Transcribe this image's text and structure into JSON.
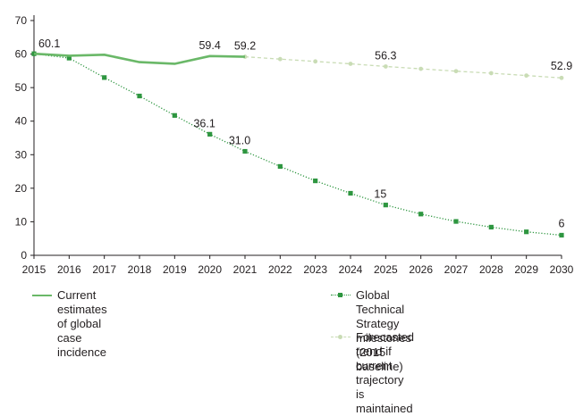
{
  "chart_data": {
    "type": "line",
    "x": [
      2015,
      2016,
      2017,
      2018,
      2019,
      2020,
      2021,
      2022,
      2023,
      2024,
      2025,
      2026,
      2027,
      2028,
      2029,
      2030
    ],
    "ylim": [
      0,
      70
    ],
    "yticks": [
      0,
      10,
      20,
      30,
      40,
      50,
      60,
      70
    ],
    "xlabel": "",
    "ylabel": "",
    "grid": false,
    "legend_position": "bottom",
    "series": [
      {
        "key": "current",
        "name": "Current estimates of global case incidence",
        "style": "solid",
        "color": "#6ab868",
        "x": [
          2015,
          2016,
          2017,
          2018,
          2019,
          2020,
          2021
        ],
        "values": [
          60.1,
          59.5,
          59.8,
          57.6,
          57.1,
          59.4,
          59.2
        ]
      },
      {
        "key": "gts",
        "name": "Global Technical Strategy milestones (2015 baseline)",
        "style": "dotted",
        "marker": "square",
        "color": "#2e9640",
        "x": [
          2015,
          2016,
          2017,
          2018,
          2019,
          2020,
          2021,
          2022,
          2023,
          2024,
          2025,
          2026,
          2027,
          2028,
          2029,
          2030
        ],
        "values": [
          60.1,
          58.8,
          53,
          47.5,
          41.7,
          36.1,
          31.0,
          26.5,
          22.2,
          18.5,
          15,
          12.3,
          10.1,
          8.4,
          7,
          6
        ]
      },
      {
        "key": "forecast",
        "name": "Forecasted trend if current trajectory is maintained",
        "style": "dashed",
        "marker": "circle",
        "color": "#c9dcb5",
        "x": [
          2021,
          2022,
          2023,
          2024,
          2025,
          2026,
          2027,
          2028,
          2029,
          2030
        ],
        "values": [
          59.2,
          58.5,
          57.8,
          57.1,
          56.3,
          55.6,
          54.9,
          54.3,
          53.6,
          52.9
        ]
      }
    ],
    "data_labels": [
      {
        "series": "current",
        "x": 2015,
        "y": 60.1,
        "text": "60.1"
      },
      {
        "series": "current",
        "x": 2020,
        "y": 59.4,
        "text": "59.4"
      },
      {
        "series": "current",
        "x": 2021,
        "y": 59.2,
        "text": "59.2"
      },
      {
        "series": "forecast",
        "x": 2025,
        "y": 56.3,
        "text": "56.3"
      },
      {
        "series": "forecast",
        "x": 2030,
        "y": 52.9,
        "text": "52.9"
      },
      {
        "series": "gts",
        "x": 2020,
        "y": 36.1,
        "text": "36.1"
      },
      {
        "series": "gts",
        "x": 2021,
        "y": 31.0,
        "text": "31.0"
      },
      {
        "series": "gts",
        "x": 2025,
        "y": 15,
        "text": "15"
      },
      {
        "series": "gts",
        "x": 2030,
        "y": 6,
        "text": "6"
      }
    ]
  },
  "legend": {
    "current": "Current estimates of global case incidence",
    "gts_line1": "Global Technical Strategy milestones",
    "gts_line2": "(2015 baseline)",
    "forecast_line1": "Forecasted trend if current trajectory",
    "forecast_line2": "is maintained"
  }
}
